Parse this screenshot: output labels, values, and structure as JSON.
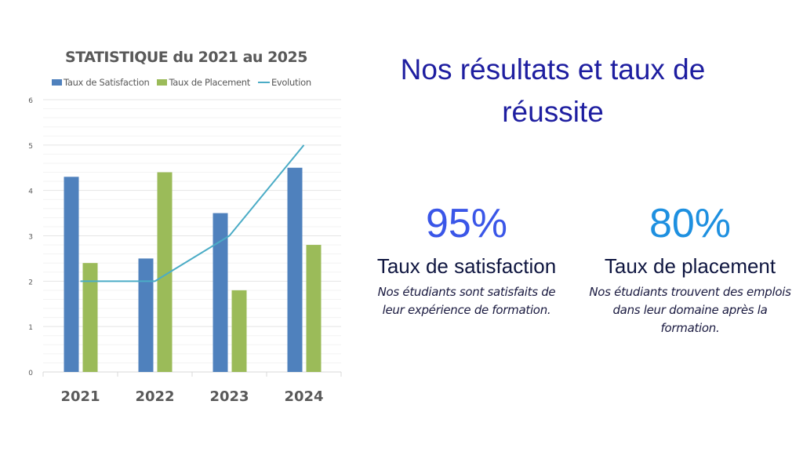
{
  "chart_data": {
    "type": "bar",
    "title": "STATISTIQUE du 2021 au 2025",
    "categories": [
      "2021",
      "2022",
      "2023",
      "2024"
    ],
    "series": [
      {
        "name": "Taux de Satisfaction",
        "type": "bar",
        "color": "#4f81bd",
        "values": [
          4.3,
          2.5,
          3.5,
          4.5
        ]
      },
      {
        "name": "Taux de Placement",
        "type": "bar",
        "color": "#9bbb59",
        "values": [
          2.4,
          4.4,
          1.8,
          2.8
        ]
      },
      {
        "name": "Evolution",
        "type": "line",
        "color": "#4bacc6",
        "values": [
          2,
          2,
          3,
          5
        ]
      }
    ],
    "ylim": [
      0,
      6
    ],
    "yticks": [
      "0",
      "1",
      "2",
      "3",
      "4",
      "5",
      "6"
    ],
    "grid": true,
    "legend_position": "top",
    "xlabel": "",
    "ylabel": ""
  },
  "heading": "Nos résultats et taux de réussite",
  "stats": [
    {
      "value": "95%",
      "label": "Taux de satisfaction",
      "description": "Nos étudiants sont satisfaits de leur expérience de formation.",
      "color": "#3a56e8"
    },
    {
      "value": "80%",
      "label": "Taux de placement",
      "description": "Nos étudiants trouvent des emplois dans leur domaine après la formation.",
      "color": "#1e90e0"
    }
  ]
}
